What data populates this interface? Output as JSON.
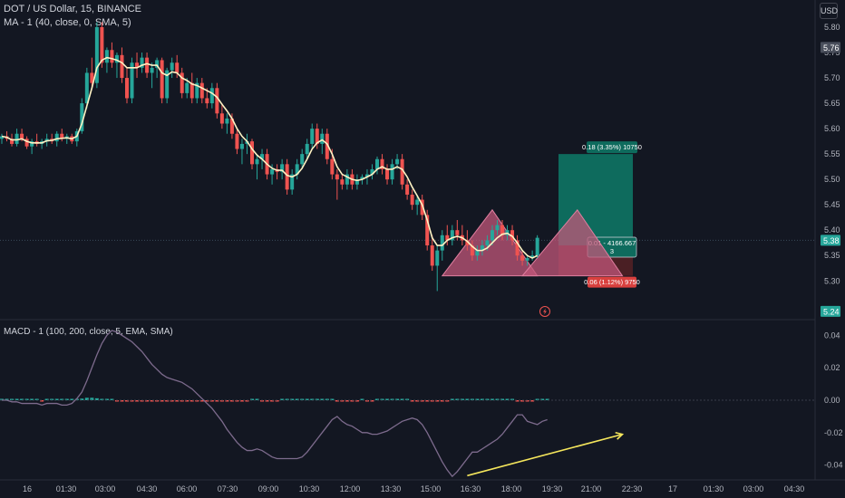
{
  "header": {
    "title": "DOT / US Dollar, 15, BINANCE",
    "ma_label": "MA - 1 (40, close, 0, SMA, 5)",
    "currency": "USD"
  },
  "macd_header": {
    "label": "MACD - 1 (100, 200, close, 5, EMA, SMA)"
  },
  "colors": {
    "background": "#131722",
    "up": "#26a69a",
    "down": "#ef5350",
    "ma_line": "#fff3c4",
    "macd_line": "#7d6b8d",
    "arrow": "#f5e65c",
    "profit_zone": "#0e6b5d",
    "loss_zone": "#4a1f24",
    "pattern_fill": "#c2577a"
  },
  "chart_data": [
    {
      "type": "candlestick",
      "title": "DOT / US Dollar, 15, BINANCE",
      "y_ticks": [
        "5.80",
        "5.75",
        "5.70",
        "5.65",
        "5.60",
        "5.55",
        "5.50",
        "5.45",
        "5.40",
        "5.35",
        "5.30"
      ],
      "ylim": [
        5.238,
        5.825
      ],
      "x_ticks": [
        "16",
        "01:30",
        "03:00",
        "04:30",
        "06:00",
        "07:30",
        "09:00",
        "10:30",
        "12:00",
        "13:30",
        "15:00",
        "16:30",
        "18:00",
        "19:30",
        "21:00",
        "22:30",
        "17",
        "01:30",
        "03:00",
        "04:30"
      ],
      "price_labels": [
        {
          "value": "5.76",
          "style": "neutral"
        },
        {
          "value": "5.38",
          "style": "up"
        },
        {
          "value": "5.24",
          "style": "up"
        }
      ],
      "current_price": 5.38,
      "candles": [
        [
          5.58,
          5.59,
          5.57,
          5.585
        ],
        [
          5.585,
          5.595,
          5.575,
          5.58
        ],
        [
          5.58,
          5.59,
          5.565,
          5.57
        ],
        [
          5.57,
          5.6,
          5.565,
          5.59
        ],
        [
          5.59,
          5.6,
          5.575,
          5.58
        ],
        [
          5.58,
          5.585,
          5.56,
          5.565
        ],
        [
          5.565,
          5.58,
          5.55,
          5.575
        ],
        [
          5.575,
          5.59,
          5.565,
          5.57
        ],
        [
          5.57,
          5.58,
          5.56,
          5.575
        ],
        [
          5.575,
          5.59,
          5.565,
          5.58
        ],
        [
          5.58,
          5.59,
          5.57,
          5.575
        ],
        [
          5.575,
          5.595,
          5.565,
          5.59
        ],
        [
          5.59,
          5.6,
          5.575,
          5.58
        ],
        [
          5.58,
          5.59,
          5.57,
          5.585
        ],
        [
          5.585,
          5.59,
          5.57,
          5.575
        ],
        [
          5.575,
          5.6,
          5.565,
          5.595
        ],
        [
          5.595,
          5.66,
          5.59,
          5.65
        ],
        [
          5.65,
          5.72,
          5.64,
          5.71
        ],
        [
          5.71,
          5.74,
          5.68,
          5.69
        ],
        [
          5.69,
          5.81,
          5.68,
          5.8
        ],
        [
          5.8,
          5.81,
          5.72,
          5.73
        ],
        [
          5.73,
          5.76,
          5.71,
          5.755
        ],
        [
          5.755,
          5.77,
          5.72,
          5.73
        ],
        [
          5.73,
          5.75,
          5.7,
          5.745
        ],
        [
          5.745,
          5.76,
          5.69,
          5.7
        ],
        [
          5.7,
          5.72,
          5.65,
          5.66
        ],
        [
          5.66,
          5.74,
          5.65,
          5.73
        ],
        [
          5.73,
          5.75,
          5.7,
          5.72
        ],
        [
          5.72,
          5.75,
          5.71,
          5.74
        ],
        [
          5.74,
          5.75,
          5.7,
          5.71
        ],
        [
          5.71,
          5.73,
          5.68,
          5.72
        ],
        [
          5.72,
          5.74,
          5.7,
          5.735
        ],
        [
          5.735,
          5.74,
          5.65,
          5.66
        ],
        [
          5.66,
          5.72,
          5.65,
          5.715
        ],
        [
          5.715,
          5.74,
          5.7,
          5.73
        ],
        [
          5.73,
          5.745,
          5.7,
          5.71
        ],
        [
          5.71,
          5.72,
          5.66,
          5.67
        ],
        [
          5.67,
          5.7,
          5.66,
          5.69
        ],
        [
          5.69,
          5.71,
          5.65,
          5.66
        ],
        [
          5.66,
          5.7,
          5.65,
          5.69
        ],
        [
          5.69,
          5.7,
          5.65,
          5.66
        ],
        [
          5.66,
          5.68,
          5.64,
          5.65
        ],
        [
          5.65,
          5.69,
          5.64,
          5.68
        ],
        [
          5.68,
          5.69,
          5.62,
          5.63
        ],
        [
          5.63,
          5.65,
          5.6,
          5.61
        ],
        [
          5.61,
          5.63,
          5.59,
          5.62
        ],
        [
          5.62,
          5.63,
          5.58,
          5.59
        ],
        [
          5.59,
          5.6,
          5.55,
          5.56
        ],
        [
          5.56,
          5.58,
          5.53,
          5.57
        ],
        [
          5.57,
          5.59,
          5.55,
          5.575
        ],
        [
          5.575,
          5.58,
          5.52,
          5.53
        ],
        [
          5.53,
          5.55,
          5.5,
          5.54
        ],
        [
          5.54,
          5.56,
          5.52,
          5.55
        ],
        [
          5.55,
          5.56,
          5.5,
          5.51
        ],
        [
          5.51,
          5.53,
          5.49,
          5.52
        ],
        [
          5.52,
          5.53,
          5.5,
          5.515
        ],
        [
          5.515,
          5.54,
          5.5,
          5.53
        ],
        [
          5.53,
          5.54,
          5.47,
          5.48
        ],
        [
          5.48,
          5.52,
          5.47,
          5.51
        ],
        [
          5.51,
          5.54,
          5.5,
          5.53
        ],
        [
          5.53,
          5.56,
          5.52,
          5.55
        ],
        [
          5.55,
          5.58,
          5.54,
          5.57
        ],
        [
          5.57,
          5.61,
          5.56,
          5.6
        ],
        [
          5.6,
          5.61,
          5.56,
          5.57
        ],
        [
          5.57,
          5.6,
          5.55,
          5.59
        ],
        [
          5.59,
          5.6,
          5.53,
          5.54
        ],
        [
          5.54,
          5.56,
          5.5,
          5.51
        ],
        [
          5.51,
          5.52,
          5.46,
          5.5
        ],
        [
          5.5,
          5.51,
          5.48,
          5.49
        ],
        [
          5.49,
          5.52,
          5.48,
          5.51
        ],
        [
          5.51,
          5.52,
          5.48,
          5.49
        ],
        [
          5.49,
          5.51,
          5.48,
          5.5
        ],
        [
          5.5,
          5.51,
          5.49,
          5.505
        ],
        [
          5.505,
          5.52,
          5.49,
          5.51
        ],
        [
          5.51,
          5.53,
          5.5,
          5.52
        ],
        [
          5.52,
          5.545,
          5.51,
          5.54
        ],
        [
          5.54,
          5.55,
          5.51,
          5.52
        ],
        [
          5.52,
          5.53,
          5.49,
          5.5
        ],
        [
          5.5,
          5.54,
          5.49,
          5.53
        ],
        [
          5.53,
          5.55,
          5.52,
          5.54
        ],
        [
          5.54,
          5.55,
          5.48,
          5.49
        ],
        [
          5.49,
          5.5,
          5.46,
          5.47
        ],
        [
          5.47,
          5.48,
          5.44,
          5.45
        ],
        [
          5.45,
          5.47,
          5.43,
          5.46
        ],
        [
          5.46,
          5.47,
          5.42,
          5.43
        ],
        [
          5.43,
          5.44,
          5.36,
          5.37
        ],
        [
          5.37,
          5.39,
          5.32,
          5.33
        ],
        [
          5.33,
          5.37,
          5.28,
          5.36
        ],
        [
          5.36,
          5.4,
          5.34,
          5.39
        ],
        [
          5.39,
          5.41,
          5.37,
          5.38
        ],
        [
          5.38,
          5.41,
          5.37,
          5.4
        ],
        [
          5.4,
          5.42,
          5.38,
          5.39
        ],
        [
          5.39,
          5.41,
          5.37,
          5.38
        ],
        [
          5.38,
          5.4,
          5.36,
          5.37
        ],
        [
          5.37,
          5.38,
          5.34,
          5.35
        ],
        [
          5.35,
          5.37,
          5.34,
          5.36
        ],
        [
          5.36,
          5.38,
          5.35,
          5.37
        ],
        [
          5.37,
          5.39,
          5.36,
          5.38
        ],
        [
          5.38,
          5.41,
          5.37,
          5.4
        ],
        [
          5.4,
          5.42,
          5.39,
          5.41
        ],
        [
          5.41,
          5.42,
          5.38,
          5.39
        ],
        [
          5.39,
          5.41,
          5.38,
          5.4
        ],
        [
          5.4,
          5.41,
          5.37,
          5.38
        ],
        [
          5.38,
          5.39,
          5.34,
          5.35
        ],
        [
          5.35,
          5.36,
          5.33,
          5.34
        ],
        [
          5.34,
          5.35,
          5.33,
          5.345
        ],
        [
          5.345,
          5.36,
          5.34,
          5.35
        ],
        [
          5.35,
          5.39,
          5.345,
          5.385
        ]
      ],
      "ma_series": [
        5.585,
        5.583,
        5.578,
        5.578,
        5.58,
        5.575,
        5.572,
        5.572,
        5.572,
        5.576,
        5.577,
        5.58,
        5.581,
        5.582,
        5.58,
        5.585,
        5.61,
        5.645,
        5.68,
        5.72,
        5.735,
        5.74,
        5.738,
        5.735,
        5.73,
        5.72,
        5.72,
        5.72,
        5.725,
        5.728,
        5.725,
        5.725,
        5.71,
        5.705,
        5.712,
        5.71,
        5.7,
        5.695,
        5.688,
        5.685,
        5.68,
        5.675,
        5.67,
        5.662,
        5.648,
        5.635,
        5.62,
        5.6,
        5.585,
        5.575,
        5.56,
        5.548,
        5.54,
        5.53,
        5.522,
        5.518,
        5.518,
        5.508,
        5.505,
        5.51,
        5.522,
        5.54,
        5.56,
        5.572,
        5.578,
        5.57,
        5.55,
        5.525,
        5.51,
        5.505,
        5.5,
        5.498,
        5.5,
        5.505,
        5.51,
        5.52,
        5.525,
        5.52,
        5.52,
        5.525,
        5.52,
        5.505,
        5.485,
        5.468,
        5.45,
        5.42,
        5.385,
        5.37,
        5.37,
        5.38,
        5.385,
        5.388,
        5.385,
        5.378,
        5.368,
        5.36,
        5.36,
        5.365,
        5.375,
        5.385,
        5.392,
        5.394,
        5.388,
        5.375,
        5.36,
        5.35,
        5.345,
        5.35
      ],
      "trade_position": {
        "entry": 5.37,
        "target": 5.55,
        "stop": 5.31,
        "target_label": "0.18 (3.35%) 10750",
        "entry_label_line1": "0.01 - 4166.667",
        "entry_label_line2": "3",
        "stop_label": "0.06 (1.12%) 9750"
      },
      "pattern_triangles": [
        {
          "left": [
            5.31,
            88
          ],
          "peak": [
            5.44,
            98
          ],
          "right": [
            5.31,
            107
          ]
        },
        {
          "left": [
            5.31,
            104
          ],
          "peak": [
            5.44,
            115
          ],
          "right": [
            5.31,
            124
          ]
        }
      ]
    },
    {
      "type": "line",
      "title": "MACD - 1 (100, 200, close, 5, EMA, SMA)",
      "y_ticks": [
        "0.04",
        "0.02",
        "0.00",
        "-0.02",
        "-0.04"
      ],
      "ylim": [
        -0.048,
        0.048
      ],
      "macd_series": [
        0,
        0,
        -0.001,
        -0.001,
        -0.002,
        -0.002,
        -0.002,
        -0.002,
        -0.003,
        -0.002,
        -0.002,
        -0.002,
        -0.003,
        -0.003,
        -0.002,
        0.001,
        0.005,
        0.012,
        0.02,
        0.028,
        0.035,
        0.04,
        0.043,
        0.042,
        0.04,
        0.038,
        0.036,
        0.033,
        0.03,
        0.026,
        0.022,
        0.019,
        0.016,
        0.014,
        0.013,
        0.012,
        0.011,
        0.009,
        0.007,
        0.004,
        0.001,
        -0.002,
        -0.005,
        -0.009,
        -0.013,
        -0.018,
        -0.022,
        -0.026,
        -0.029,
        -0.031,
        -0.031,
        -0.03,
        -0.031,
        -0.033,
        -0.035,
        -0.036,
        -0.036,
        -0.036,
        -0.036,
        -0.036,
        -0.035,
        -0.032,
        -0.028,
        -0.024,
        -0.02,
        -0.016,
        -0.012,
        -0.01,
        -0.013,
        -0.015,
        -0.016,
        -0.018,
        -0.02,
        -0.02,
        -0.021,
        -0.021,
        -0.02,
        -0.019,
        -0.017,
        -0.015,
        -0.013,
        -0.012,
        -0.011,
        -0.012,
        -0.015,
        -0.02,
        -0.026,
        -0.032,
        -0.038,
        -0.043,
        -0.047,
        -0.044,
        -0.04,
        -0.036,
        -0.032,
        -0.032,
        -0.03,
        -0.028,
        -0.026,
        -0.024,
        -0.021,
        -0.017,
        -0.013,
        -0.009,
        -0.009,
        -0.013,
        -0.014,
        -0.015,
        -0.013,
        -0.012
      ],
      "histogram": [
        0,
        0,
        0,
        0,
        0,
        0,
        0,
        0,
        -0.0005,
        0,
        0,
        0,
        0,
        0,
        0.0004,
        0.0006,
        0.001,
        0.0015,
        0.0015,
        0.0012,
        0.0008,
        0.0006,
        0.0005,
        -0.0003,
        -0.0006,
        -0.0006,
        -0.0006,
        -0.0006,
        -0.0006,
        -0.0008,
        -0.0007,
        -0.0006,
        -0.0005,
        -0.0004,
        -0.0004,
        -0.0003,
        -0.0004,
        -0.0005,
        -0.0006,
        -0.0006,
        -0.0006,
        -0.0007,
        -0.0007,
        -0.0008,
        -0.0008,
        -0.0008,
        -0.0007,
        -0.0006,
        -0.0004,
        -0.0002,
        0.0002,
        0.0002,
        -0.0002,
        -0.0003,
        -0.0003,
        -0.0002,
        0,
        0,
        0,
        0.0002,
        0.0004,
        0.0006,
        0.0007,
        0.0007,
        0.0007,
        0.0007,
        0.0004,
        -0.0005,
        -0.0006,
        -0.0004,
        -0.0004,
        -0.0003,
        0,
        -0.0002,
        -0.0002,
        0.0002,
        0.0003,
        0.0004,
        0.0004,
        0.0003,
        0.0002,
        0.0001,
        -0.0003,
        -0.0005,
        -0.0007,
        -0.0008,
        -0.0008,
        -0.0008,
        -0.0007,
        -0.0005,
        0.0006,
        0.0007,
        0.0007,
        0.0007,
        0.0006,
        0.0005,
        0.0004,
        0.0004,
        0.0005,
        0.0006,
        0.0007,
        0.0007,
        0.0005,
        -0.0004,
        -0.0004,
        -0.0003,
        -0.0003,
        0.0002,
        0.0003,
        0.0003
      ],
      "arrow": {
        "from": [
          93,
          -0.0465
        ],
        "to": [
          124,
          -0.021
        ]
      }
    }
  ],
  "time_axis": {
    "labels": [
      "16",
      "01:30",
      "03:00",
      "04:30",
      "06:00",
      "07:30",
      "09:00",
      "10:30",
      "12:00",
      "13:30",
      "15:00",
      "16:30",
      "18:00",
      "19:30",
      "21:00",
      "22:30",
      "17",
      "01:30",
      "03:00",
      "04:30"
    ]
  },
  "markers": {
    "lightning_icon": "lightning-icon"
  }
}
